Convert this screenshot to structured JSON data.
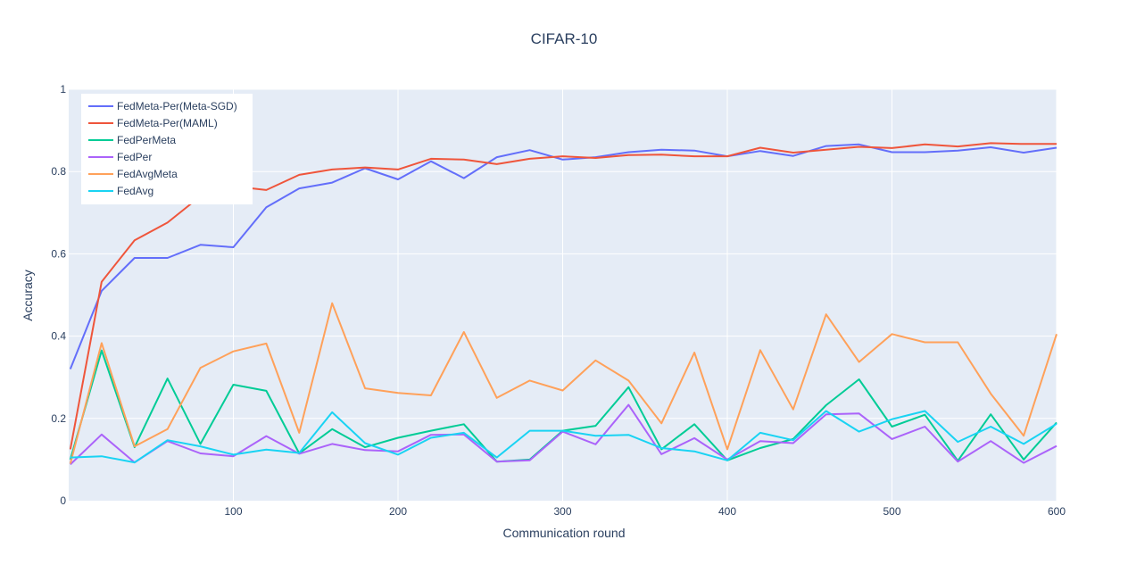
{
  "chart_data": {
    "type": "line",
    "title": "CIFAR-10",
    "xlabel": "Communication round",
    "ylabel": "Accuracy",
    "xlim": [
      0,
      600
    ],
    "ylim": [
      0,
      1
    ],
    "x_ticks": [
      100,
      200,
      300,
      400,
      500,
      600
    ],
    "y_ticks": [
      0,
      0.2,
      0.4,
      0.6,
      0.8,
      1
    ],
    "y_tick_labels": [
      "0",
      "0.2",
      "0.4",
      "0.6",
      "0.8",
      "1"
    ],
    "grid": true,
    "legend_position": "top-left",
    "x": [
      1,
      20,
      40,
      60,
      80,
      100,
      120,
      140,
      160,
      180,
      200,
      220,
      240,
      260,
      280,
      300,
      320,
      340,
      360,
      380,
      400,
      420,
      440,
      460,
      480,
      500,
      520,
      540,
      560,
      580,
      600
    ],
    "series": [
      {
        "name": "FedMeta-Per(Meta-SGD)",
        "color": "#636efa",
        "values": [
          0.32,
          0.51,
          0.59,
          0.59,
          0.622,
          0.616,
          0.713,
          0.759,
          0.773,
          0.808,
          0.781,
          0.825,
          0.784,
          0.835,
          0.852,
          0.829,
          0.835,
          0.847,
          0.853,
          0.851,
          0.837,
          0.85,
          0.838,
          0.862,
          0.866,
          0.847,
          0.847,
          0.851,
          0.859,
          0.846,
          0.858
        ]
      },
      {
        "name": "FedMeta-Per(MAML)",
        "color": "#ef553b",
        "values": [
          0.125,
          0.532,
          0.633,
          0.676,
          0.74,
          0.764,
          0.755,
          0.792,
          0.805,
          0.81,
          0.805,
          0.831,
          0.829,
          0.818,
          0.831,
          0.837,
          0.833,
          0.84,
          0.841,
          0.837,
          0.837,
          0.858,
          0.846,
          0.853,
          0.86,
          0.857,
          0.866,
          0.861,
          0.869,
          0.867,
          0.867
        ]
      },
      {
        "name": "FedPerMeta",
        "color": "#00cc96",
        "values": [
          0.1,
          0.365,
          0.13,
          0.297,
          0.138,
          0.282,
          0.267,
          0.115,
          0.174,
          0.13,
          0.153,
          0.17,
          0.186,
          0.095,
          0.1,
          0.17,
          0.182,
          0.276,
          0.125,
          0.186,
          0.098,
          0.128,
          0.15,
          0.232,
          0.295,
          0.18,
          0.209,
          0.097,
          0.21,
          0.1,
          0.19
        ]
      },
      {
        "name": "FedPer",
        "color": "#ab63fa",
        "values": [
          0.088,
          0.161,
          0.093,
          0.145,
          0.115,
          0.108,
          0.157,
          0.114,
          0.138,
          0.123,
          0.12,
          0.16,
          0.161,
          0.095,
          0.098,
          0.168,
          0.137,
          0.233,
          0.113,
          0.152,
          0.1,
          0.145,
          0.14,
          0.21,
          0.212,
          0.15,
          0.18,
          0.095,
          0.145,
          0.092,
          0.133
        ]
      },
      {
        "name": "FedAvgMeta",
        "color": "#ffa15a",
        "values": [
          0.09,
          0.383,
          0.132,
          0.174,
          0.323,
          0.363,
          0.382,
          0.165,
          0.48,
          0.273,
          0.262,
          0.256,
          0.41,
          0.25,
          0.292,
          0.268,
          0.341,
          0.292,
          0.188,
          0.36,
          0.125,
          0.366,
          0.222,
          0.453,
          0.337,
          0.405,
          0.385,
          0.385,
          0.26,
          0.158,
          0.405
        ]
      },
      {
        "name": "FedAvg",
        "color": "#19d3f3",
        "values": [
          0.105,
          0.108,
          0.093,
          0.147,
          0.132,
          0.112,
          0.124,
          0.116,
          0.215,
          0.14,
          0.112,
          0.153,
          0.165,
          0.105,
          0.17,
          0.17,
          0.158,
          0.16,
          0.128,
          0.12,
          0.098,
          0.165,
          0.147,
          0.218,
          0.168,
          0.198,
          0.218,
          0.143,
          0.18,
          0.138,
          0.187
        ]
      }
    ]
  }
}
